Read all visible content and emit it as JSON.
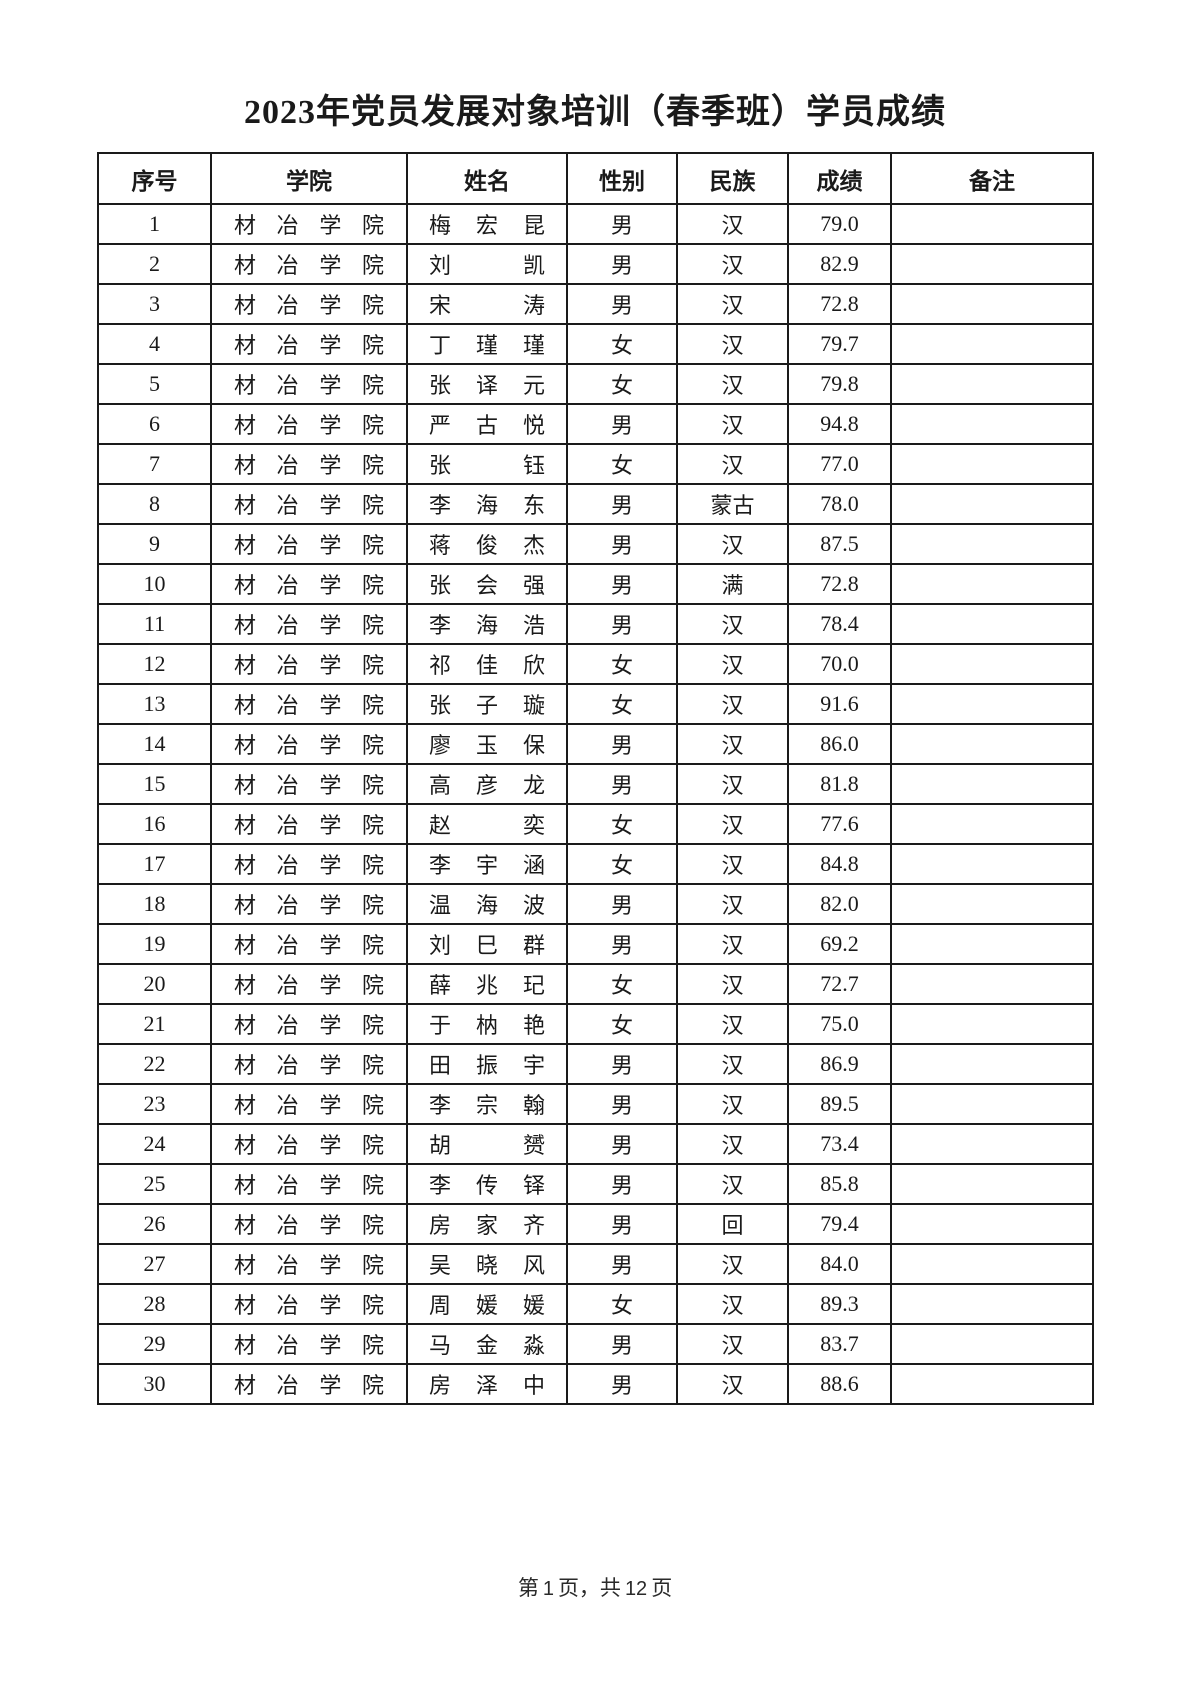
{
  "page": {
    "title": "2023年党员发展对象培训（春季班）学员成绩",
    "footer": {
      "label_prefix": "第",
      "page_number": "1",
      "label_middle": "页，共",
      "total_pages": "12",
      "label_suffix": "页"
    }
  },
  "table": {
    "headers": [
      "序号",
      "学院",
      "姓名",
      "性别",
      "民族",
      "成绩",
      "备注"
    ],
    "rows": [
      {
        "no": "1",
        "college": "材冶学院",
        "name": "梅宏昆",
        "gender": "男",
        "ethnicity": "汉",
        "score": "79.0",
        "remark": ""
      },
      {
        "no": "2",
        "college": "材冶学院",
        "name": "刘凯",
        "gender": "男",
        "ethnicity": "汉",
        "score": "82.9",
        "remark": ""
      },
      {
        "no": "3",
        "college": "材冶学院",
        "name": "宋涛",
        "gender": "男",
        "ethnicity": "汉",
        "score": "72.8",
        "remark": ""
      },
      {
        "no": "4",
        "college": "材冶学院",
        "name": "丁瑾瑾",
        "gender": "女",
        "ethnicity": "汉",
        "score": "79.7",
        "remark": ""
      },
      {
        "no": "5",
        "college": "材冶学院",
        "name": "张译元",
        "gender": "女",
        "ethnicity": "汉",
        "score": "79.8",
        "remark": ""
      },
      {
        "no": "6",
        "college": "材冶学院",
        "name": "严古悦",
        "gender": "男",
        "ethnicity": "汉",
        "score": "94.8",
        "remark": ""
      },
      {
        "no": "7",
        "college": "材冶学院",
        "name": "张钰",
        "gender": "女",
        "ethnicity": "汉",
        "score": "77.0",
        "remark": ""
      },
      {
        "no": "8",
        "college": "材冶学院",
        "name": "李海东",
        "gender": "男",
        "ethnicity": "蒙古",
        "score": "78.0",
        "remark": ""
      },
      {
        "no": "9",
        "college": "材冶学院",
        "name": "蒋俊杰",
        "gender": "男",
        "ethnicity": "汉",
        "score": "87.5",
        "remark": ""
      },
      {
        "no": "10",
        "college": "材冶学院",
        "name": "张会强",
        "gender": "男",
        "ethnicity": "满",
        "score": "72.8",
        "remark": ""
      },
      {
        "no": "11",
        "college": "材冶学院",
        "name": "李海浩",
        "gender": "男",
        "ethnicity": "汉",
        "score": "78.4",
        "remark": ""
      },
      {
        "no": "12",
        "college": "材冶学院",
        "name": "祁佳欣",
        "gender": "女",
        "ethnicity": "汉",
        "score": "70.0",
        "remark": ""
      },
      {
        "no": "13",
        "college": "材冶学院",
        "name": "张子璇",
        "gender": "女",
        "ethnicity": "汉",
        "score": "91.6",
        "remark": ""
      },
      {
        "no": "14",
        "college": "材冶学院",
        "name": "廖玉保",
        "gender": "男",
        "ethnicity": "汉",
        "score": "86.0",
        "remark": ""
      },
      {
        "no": "15",
        "college": "材冶学院",
        "name": "高彦龙",
        "gender": "男",
        "ethnicity": "汉",
        "score": "81.8",
        "remark": ""
      },
      {
        "no": "16",
        "college": "材冶学院",
        "name": "赵奕",
        "gender": "女",
        "ethnicity": "汉",
        "score": "77.6",
        "remark": ""
      },
      {
        "no": "17",
        "college": "材冶学院",
        "name": "李宇涵",
        "gender": "女",
        "ethnicity": "汉",
        "score": "84.8",
        "remark": ""
      },
      {
        "no": "18",
        "college": "材冶学院",
        "name": "温海波",
        "gender": "男",
        "ethnicity": "汉",
        "score": "82.0",
        "remark": ""
      },
      {
        "no": "19",
        "college": "材冶学院",
        "name": "刘巳群",
        "gender": "男",
        "ethnicity": "汉",
        "score": "69.2",
        "remark": ""
      },
      {
        "no": "20",
        "college": "材冶学院",
        "name": "薛兆玘",
        "gender": "女",
        "ethnicity": "汉",
        "score": "72.7",
        "remark": ""
      },
      {
        "no": "21",
        "college": "材冶学院",
        "name": "于枘艳",
        "gender": "女",
        "ethnicity": "汉",
        "score": "75.0",
        "remark": ""
      },
      {
        "no": "22",
        "college": "材冶学院",
        "name": "田振宇",
        "gender": "男",
        "ethnicity": "汉",
        "score": "86.9",
        "remark": ""
      },
      {
        "no": "23",
        "college": "材冶学院",
        "name": "李宗翰",
        "gender": "男",
        "ethnicity": "汉",
        "score": "89.5",
        "remark": ""
      },
      {
        "no": "24",
        "college": "材冶学院",
        "name": "胡赟",
        "gender": "男",
        "ethnicity": "汉",
        "score": "73.4",
        "remark": ""
      },
      {
        "no": "25",
        "college": "材冶学院",
        "name": "李传铎",
        "gender": "男",
        "ethnicity": "汉",
        "score": "85.8",
        "remark": ""
      },
      {
        "no": "26",
        "college": "材冶学院",
        "name": "房家齐",
        "gender": "男",
        "ethnicity": "回",
        "score": "79.4",
        "remark": ""
      },
      {
        "no": "27",
        "college": "材冶学院",
        "name": "吴晓风",
        "gender": "男",
        "ethnicity": "汉",
        "score": "84.0",
        "remark": ""
      },
      {
        "no": "28",
        "college": "材冶学院",
        "name": "周媛媛",
        "gender": "女",
        "ethnicity": "汉",
        "score": "89.3",
        "remark": ""
      },
      {
        "no": "29",
        "college": "材冶学院",
        "name": "马金淼",
        "gender": "男",
        "ethnicity": "汉",
        "score": "83.7",
        "remark": ""
      },
      {
        "no": "30",
        "college": "材冶学院",
        "name": "房泽中",
        "gender": "男",
        "ethnicity": "汉",
        "score": "88.6",
        "remark": ""
      }
    ]
  }
}
